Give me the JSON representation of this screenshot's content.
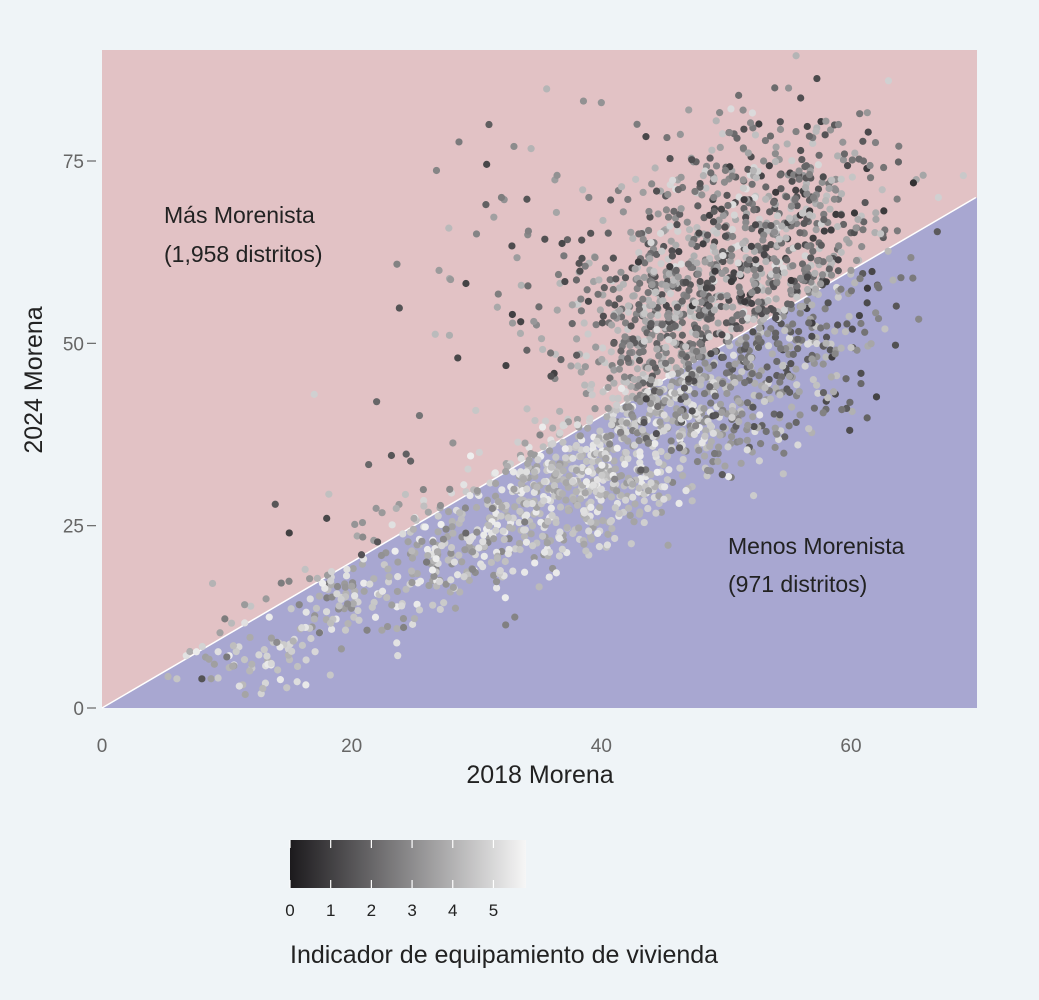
{
  "chart_data": {
    "type": "scatter",
    "title": "",
    "xlabel": "2018 Morena",
    "ylabel": "2024 Morena",
    "xlim": [
      0,
      70
    ],
    "ylim": [
      0,
      90
    ],
    "x_ticks": [
      0,
      20,
      40,
      60
    ],
    "y_ticks": [
      0,
      25,
      50,
      75
    ],
    "x_tick_labels": [
      "0",
      "20",
      "40",
      "60"
    ],
    "y_tick_labels": [
      "0",
      "25",
      "50",
      "75"
    ],
    "grid": false,
    "reference_line": {
      "description": "y = x",
      "from": [
        0,
        0
      ],
      "to": [
        70,
        70
      ]
    },
    "regions": {
      "above": {
        "label": "Más Morenista",
        "count_label": "(1,958 distritos)",
        "color": "#e2c2c5"
      },
      "below": {
        "label": "Menos Morenista",
        "count_label": "(971 distritos)",
        "color": "#a8a7d1"
      }
    },
    "color_scale": {
      "title": "Indicador de equipamiento de vivienda",
      "min": 0,
      "max": 5.8,
      "ticks": [
        0,
        1,
        2,
        3,
        4,
        5
      ],
      "tick_labels": [
        "0",
        "1",
        "2",
        "3",
        "4",
        "5"
      ],
      "low_color": "#1c1a1d",
      "high_color": "#f6f6f6"
    },
    "points": [
      {
        "x": 6,
        "y": 4,
        "c": 4.5
      },
      {
        "x": 8,
        "y": 4,
        "c": 1.5
      },
      {
        "x": 9,
        "y": 6,
        "c": 3.5
      },
      {
        "x": 10,
        "y": 7,
        "c": 2.5
      },
      {
        "x": 11,
        "y": 3,
        "c": 5.2
      },
      {
        "x": 12,
        "y": 6,
        "c": 4
      },
      {
        "x": 13,
        "y": 8,
        "c": 4.6
      },
      {
        "x": 14,
        "y": 9,
        "c": 3
      },
      {
        "x": 15,
        "y": 24,
        "c": 1
      },
      {
        "x": 16,
        "y": 11,
        "c": 5
      },
      {
        "x": 17,
        "y": 43,
        "c": 4.8
      },
      {
        "x": 18,
        "y": 26,
        "c": 1.2
      },
      {
        "x": 19,
        "y": 14,
        "c": 4.4
      },
      {
        "x": 21,
        "y": 16,
        "c": 3.6
      },
      {
        "x": 22,
        "y": 42,
        "c": 2
      },
      {
        "x": 23,
        "y": 18,
        "c": 4
      },
      {
        "x": 24,
        "y": 14,
        "c": 5
      },
      {
        "x": 25,
        "y": 26,
        "c": 3.8
      },
      {
        "x": 26,
        "y": 20,
        "c": 2.5
      },
      {
        "x": 27,
        "y": 60,
        "c": 3.4
      },
      {
        "x": 28,
        "y": 22,
        "c": 4.6
      },
      {
        "x": 28.5,
        "y": 48,
        "c": 1.2
      },
      {
        "x": 29,
        "y": 18,
        "c": 4.8
      },
      {
        "x": 30,
        "y": 65,
        "c": 2.8
      },
      {
        "x": 31,
        "y": 80,
        "c": 1.8
      },
      {
        "x": 31,
        "y": 25,
        "c": 4.2
      },
      {
        "x": 32,
        "y": 70,
        "c": 2.6
      },
      {
        "x": 33,
        "y": 30,
        "c": 3.5
      },
      {
        "x": 33,
        "y": 77,
        "c": 3
      },
      {
        "x": 34,
        "y": 28,
        "c": 4.8
      },
      {
        "x": 35,
        "y": 55,
        "c": 2.2
      },
      {
        "x": 36,
        "y": 33,
        "c": 4.4
      },
      {
        "x": 37,
        "y": 62,
        "c": 2.5
      },
      {
        "x": 38,
        "y": 36,
        "c": 4.7
      },
      {
        "x": 39,
        "y": 70,
        "c": 2.8
      },
      {
        "x": 40,
        "y": 83,
        "c": 3.2
      },
      {
        "x": 40,
        "y": 30,
        "c": 5
      },
      {
        "x": 41,
        "y": 50,
        "c": 1.8
      },
      {
        "x": 42,
        "y": 35,
        "c": 4.6
      },
      {
        "x": 43,
        "y": 65,
        "c": 2.2
      },
      {
        "x": 44,
        "y": 45,
        "c": 3.4
      },
      {
        "x": 45,
        "y": 38,
        "c": 4.9
      },
      {
        "x": 46,
        "y": 60,
        "c": 2
      },
      {
        "x": 47,
        "y": 82,
        "c": 3.5
      },
      {
        "x": 48,
        "y": 45,
        "c": 4.2
      },
      {
        "x": 49,
        "y": 70,
        "c": 2.8
      },
      {
        "x": 50,
        "y": 55,
        "c": 3.6
      },
      {
        "x": 51,
        "y": 84,
        "c": 2.2
      },
      {
        "x": 52,
        "y": 48,
        "c": 4.4
      },
      {
        "x": 53,
        "y": 75,
        "c": 3
      },
      {
        "x": 54,
        "y": 60,
        "c": 2.4
      },
      {
        "x": 55,
        "y": 85,
        "c": 3.2
      },
      {
        "x": 56,
        "y": 55,
        "c": 3.8
      },
      {
        "x": 57,
        "y": 70,
        "c": 2.6
      },
      {
        "x": 58,
        "y": 50,
        "c": 4
      },
      {
        "x": 59,
        "y": 80,
        "c": 2.8
      },
      {
        "x": 60,
        "y": 60,
        "c": 3.4
      },
      {
        "x": 61,
        "y": 75,
        "c": 2.2
      },
      {
        "x": 62,
        "y": 67,
        "c": 3.6
      },
      {
        "x": 63,
        "y": 86,
        "c": 4.8
      },
      {
        "x": 64,
        "y": 59,
        "c": 2.4
      },
      {
        "x": 65,
        "y": 72,
        "c": 0.6
      },
      {
        "x": 67,
        "y": 70,
        "c": 4.8
      },
      {
        "x": 69,
        "y": 73,
        "c": 4.6
      }
    ],
    "point_cloud": {
      "note": "dense mass of districts, summarised as clusters (centre, spread, count, colour-indicator range)",
      "clusters": [
        {
          "cx": 12,
          "cy": 7,
          "sx": 3,
          "sy": 2.5,
          "n": 60,
          "cmin": 3.4,
          "cmax": 5.6
        },
        {
          "cx": 20,
          "cy": 14,
          "sx": 3.5,
          "sy": 3,
          "n": 100,
          "cmin": 2.5,
          "cmax": 5.6
        },
        {
          "cx": 28,
          "cy": 21,
          "sx": 3.5,
          "sy": 3.5,
          "n": 160,
          "cmin": 2.8,
          "cmax": 5.6
        },
        {
          "cx": 35,
          "cy": 28,
          "sx": 3,
          "sy": 4,
          "n": 200,
          "cmin": 3.4,
          "cmax": 5.6
        },
        {
          "cx": 40,
          "cy": 32,
          "sx": 3,
          "sy": 4,
          "n": 260,
          "cmin": 3.4,
          "cmax": 5.6
        },
        {
          "cx": 45,
          "cy": 40,
          "sx": 3.5,
          "sy": 5,
          "n": 320,
          "cmin": 2.5,
          "cmax": 5.6
        },
        {
          "cx": 45,
          "cy": 55,
          "sx": 3.5,
          "sy": 6,
          "n": 320,
          "cmin": 1.2,
          "cmax": 4.8
        },
        {
          "cx": 51,
          "cy": 48,
          "sx": 4,
          "sy": 7,
          "n": 360,
          "cmin": 1.2,
          "cmax": 5.2
        },
        {
          "cx": 52,
          "cy": 66,
          "sx": 4.5,
          "sy": 8,
          "n": 420,
          "cmin": 0.8,
          "cmax": 5.2
        },
        {
          "cx": 58,
          "cy": 63,
          "sx": 3.5,
          "sy": 10,
          "n": 220,
          "cmin": 0.8,
          "cmax": 4.6
        },
        {
          "cx": 36,
          "cy": 60,
          "sx": 5,
          "sy": 12,
          "n": 70,
          "cmin": 1,
          "cmax": 4.4
        },
        {
          "cx": 26,
          "cy": 28,
          "sx": 5,
          "sy": 8,
          "n": 35,
          "cmin": 1.5,
          "cmax": 4.6
        }
      ]
    }
  }
}
